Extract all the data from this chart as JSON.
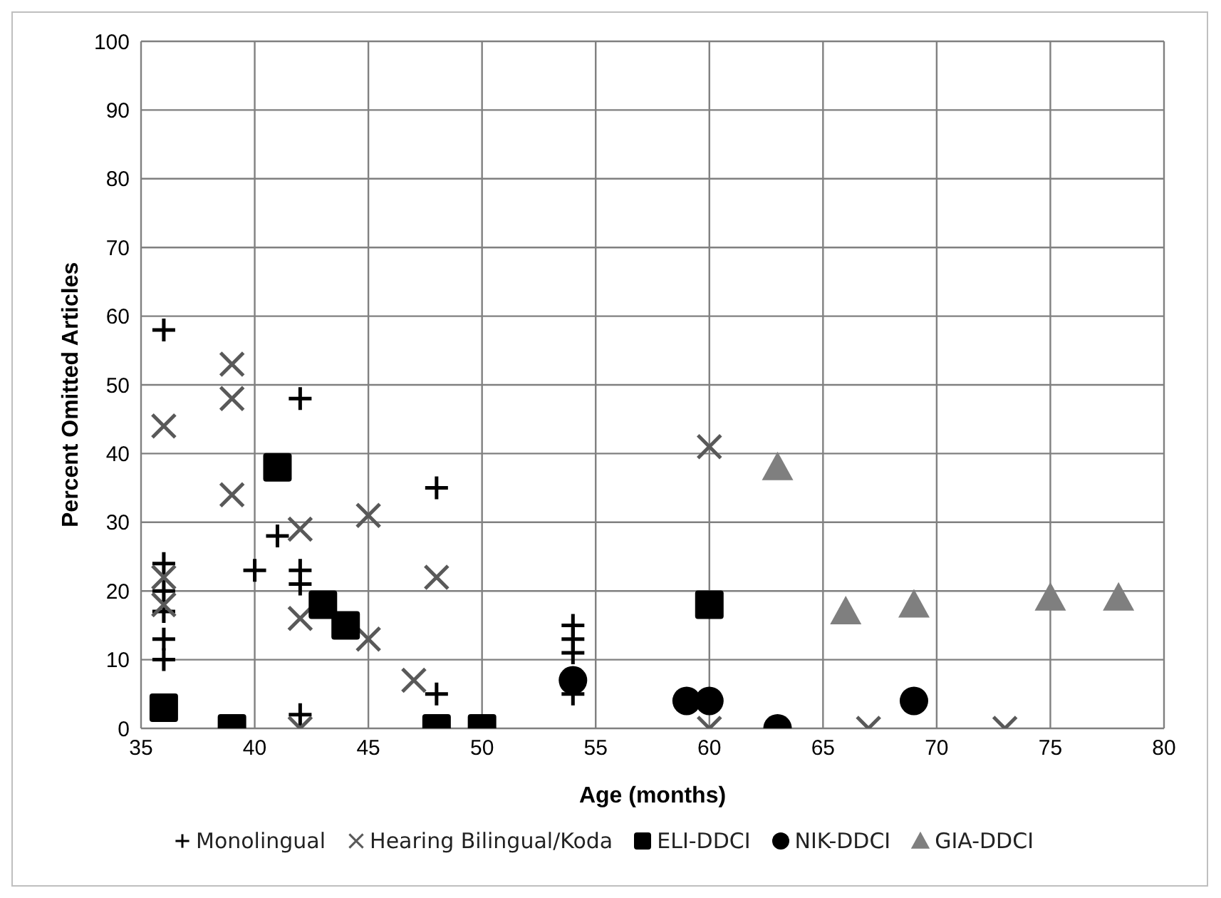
{
  "chart_data": {
    "type": "scatter",
    "xlabel": "Age (months)",
    "ylabel": "Percent Omitted Articles",
    "xlim": [
      35,
      80
    ],
    "ylim": [
      0,
      100
    ],
    "xticks": [
      35,
      40,
      45,
      50,
      55,
      60,
      65,
      70,
      75,
      80
    ],
    "yticks": [
      0,
      10,
      20,
      30,
      40,
      50,
      60,
      70,
      80,
      90,
      100
    ],
    "grid": true,
    "legend": "bottom",
    "series": [
      {
        "name": "Monolingual",
        "color": "#000000",
        "marker": "cross",
        "x": [
          36,
          36,
          36,
          36,
          36,
          36,
          40,
          41,
          42,
          42,
          42,
          42,
          48,
          48,
          54,
          54,
          54,
          54
        ],
        "values": [
          58,
          24,
          20,
          17,
          13,
          10,
          23,
          28,
          48,
          23,
          21,
          2,
          35,
          5,
          15,
          13,
          11,
          5
        ]
      },
      {
        "name": "Hearing Bilingual/Koda",
        "color": "#595959",
        "marker": "x",
        "x": [
          36,
          36,
          36,
          39,
          39,
          39,
          42,
          42,
          42,
          45,
          45,
          47,
          48,
          60,
          60,
          67,
          73
        ],
        "values": [
          44,
          22,
          18,
          53,
          48,
          34,
          29,
          16,
          0,
          31,
          13,
          7,
          22,
          41,
          0,
          0,
          0
        ]
      },
      {
        "name": "ELI-DDCI",
        "color": "#000000",
        "marker": "square",
        "x": [
          36,
          39,
          41,
          43,
          44,
          48,
          50,
          60
        ],
        "values": [
          3,
          0,
          38,
          18,
          15,
          0,
          0,
          18
        ]
      },
      {
        "name": "NIK-DDCI",
        "color": "#000000",
        "marker": "circle",
        "x": [
          54,
          59,
          60,
          63,
          69
        ],
        "values": [
          7,
          4,
          4,
          0,
          4
        ]
      },
      {
        "name": "GIA-DDCI",
        "color": "#7f7f7f",
        "marker": "triangle",
        "x": [
          63,
          66,
          69,
          75,
          78
        ],
        "values": [
          38,
          17,
          18,
          19,
          19
        ]
      }
    ]
  }
}
